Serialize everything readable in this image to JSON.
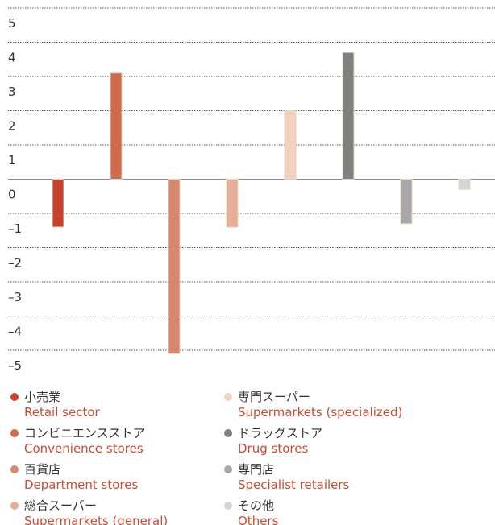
{
  "chart_data": {
    "type": "bar",
    "categories": [
      "Retail sector",
      "Convenience stores",
      "Department stores",
      "Supermarkets (general)",
      "Supermarkets (specialized)",
      "Drug stores",
      "Specialist retailers",
      "Others"
    ],
    "categories_ja": [
      "小売業",
      "コンビニエンスストア",
      "百貨店",
      "総合スーパー",
      "専門スーパー",
      "ドラッグストア",
      "専門店",
      "その他"
    ],
    "values": [
      -1.4,
      3.1,
      -5.1,
      -1.4,
      2.0,
      3.7,
      -1.3,
      -0.3
    ],
    "colors": [
      "#c8432b",
      "#d06a4e",
      "#d98870",
      "#e8af98",
      "#f4d0c0",
      "#808080",
      "#a8a8a8",
      "#d5d5d5"
    ],
    "ylim": [
      -5,
      5
    ],
    "yticks": [
      5,
      4,
      3,
      2,
      1,
      0,
      {
        "value": -1,
        "label": "–1"
      },
      {
        "value": -2,
        "label": "–2"
      },
      {
        "value": -3,
        "label": "–3"
      },
      {
        "value": -4,
        "label": "–4"
      },
      {
        "value": -5,
        "label": "–5"
      }
    ],
    "grid": true
  }
}
